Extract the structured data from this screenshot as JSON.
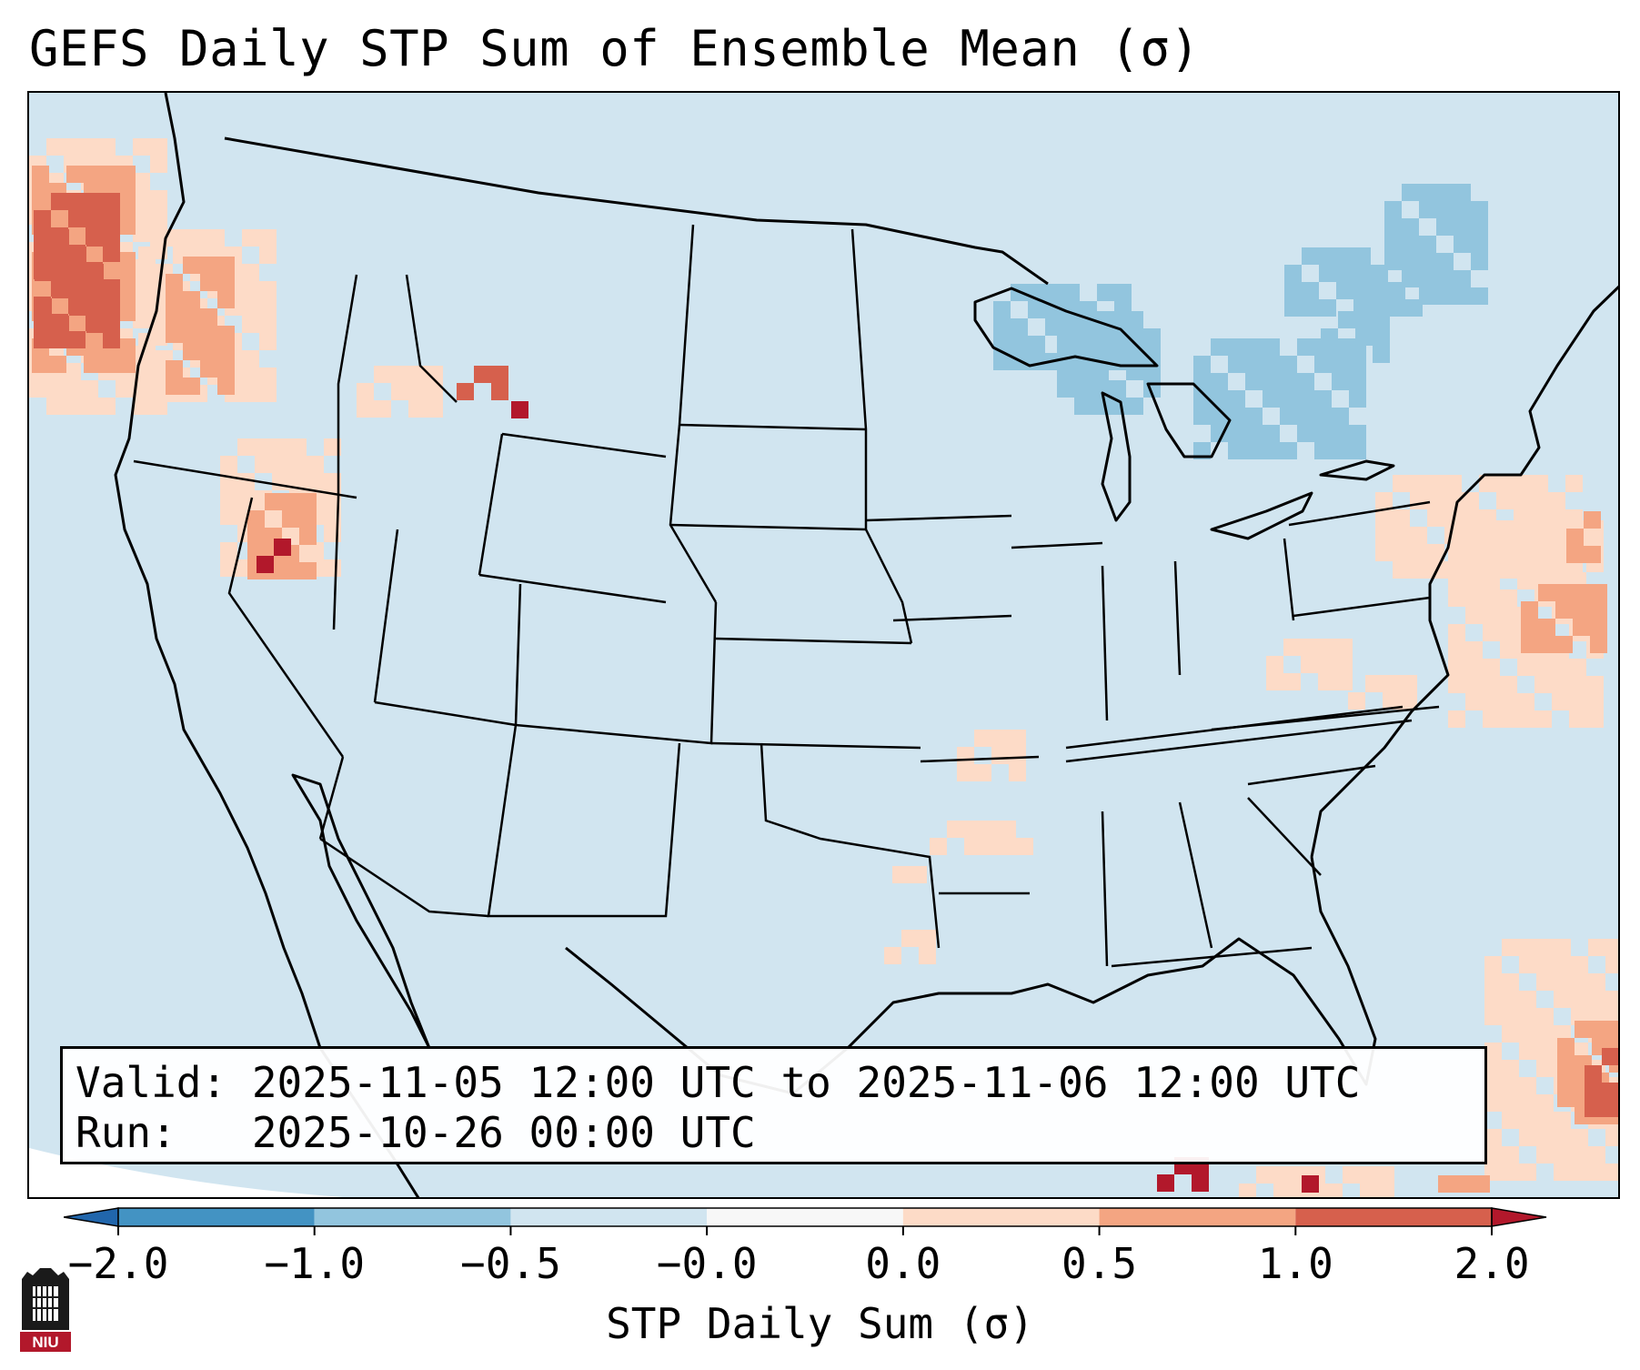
{
  "title": "GEFS Daily STP Sum of Ensemble Mean (σ)",
  "map": {
    "region": "Continental United States",
    "data_layer": "STP Daily Sum anomaly",
    "colors": {
      "base_fill": "#d1e5f0",
      "light_blue": "#92c5de",
      "light_orange": "#fddbc7",
      "orange": "#f4a582",
      "red": "#d6604d",
      "dark_red": "#b2182b",
      "land_border": "#000000"
    }
  },
  "info": {
    "valid_line": "Valid: 2025-11-05 12:00 UTC to 2025-11-06 12:00 UTC",
    "run_line": "Run:   2025-10-26 00:00 UTC"
  },
  "colorbar": {
    "label": "STP Daily Sum (σ)",
    "ticks": [
      "−2.0",
      "−1.0",
      "−0.5",
      "−0.0",
      "0.0",
      "0.5",
      "1.0",
      "2.0"
    ],
    "segments": [
      "#4393c3",
      "#92c5de",
      "#d1e5f0",
      "#f7f7f7",
      "#fddbc7",
      "#f4a582",
      "#d6604d"
    ],
    "extend_low_color": "#2166ac",
    "extend_high_color": "#b2182b"
  },
  "logo": {
    "text": "NIU",
    "description_icon": "university-seal-icon"
  }
}
